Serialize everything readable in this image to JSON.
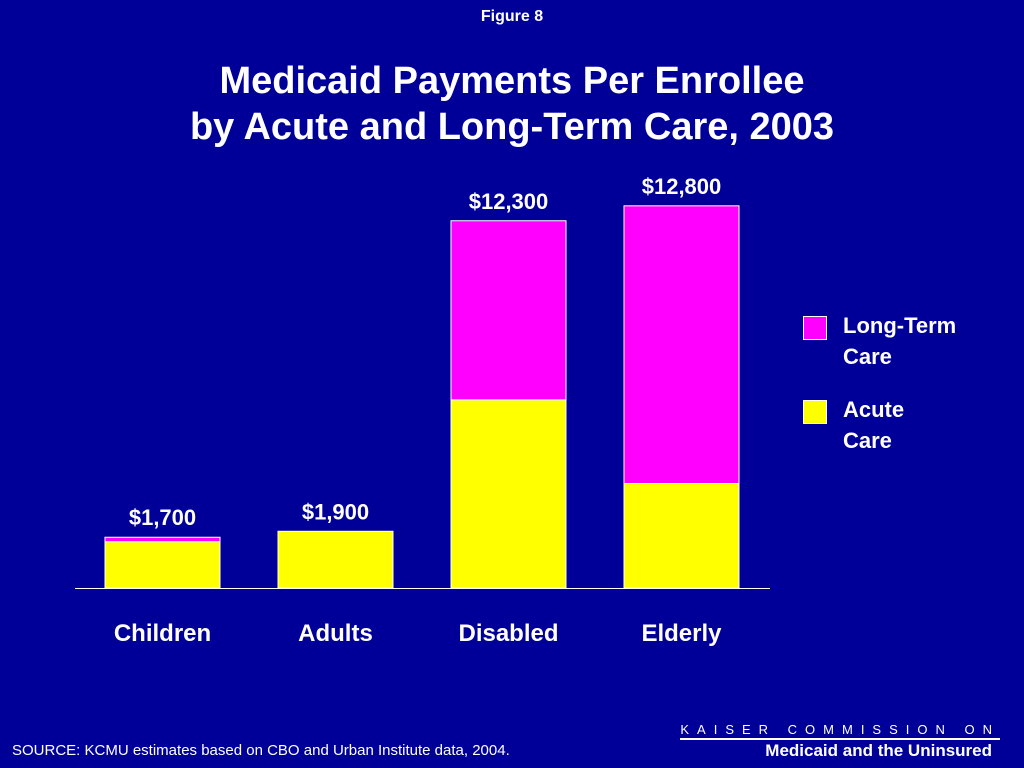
{
  "figure_label": "Figure 8",
  "title_lines": [
    "Medicaid Payments Per Enrollee",
    "by Acute and Long-Term Care, 2003"
  ],
  "colors": {
    "background": "#000099",
    "long_term": "#ff00ff",
    "acute": "#ffff00",
    "text": "#ffffff"
  },
  "legend": [
    {
      "label_line1": "Long-Term",
      "label_line2": "Care",
      "color": "#ff00ff"
    },
    {
      "label_line1": "Acute",
      "label_line2": "Care",
      "color": "#ffff00"
    }
  ],
  "chart_data": {
    "type": "bar",
    "stacked": true,
    "categories": [
      "Children",
      "Adults",
      "Disabled",
      "Elderly"
    ],
    "series": [
      {
        "name": "Acute Care",
        "values": [
          1550,
          1900,
          6300,
          3500
        ]
      },
      {
        "name": "Long-Term Care",
        "values": [
          150,
          0,
          6000,
          9300
        ]
      }
    ],
    "totals": [
      1700,
      1900,
      12300,
      12800
    ],
    "total_labels": [
      "$1,700",
      "$1,900",
      "$12,300",
      "$12,800"
    ],
    "ylim": [
      0,
      14000
    ],
    "grid": false,
    "legend_position": "right"
  },
  "source": "SOURCE: KCMU estimates based on CBO and Urban Institute data, 2004.",
  "org": {
    "line1": "KAISER COMMISSION ON",
    "line2": "Medicaid and the Uninsured"
  }
}
